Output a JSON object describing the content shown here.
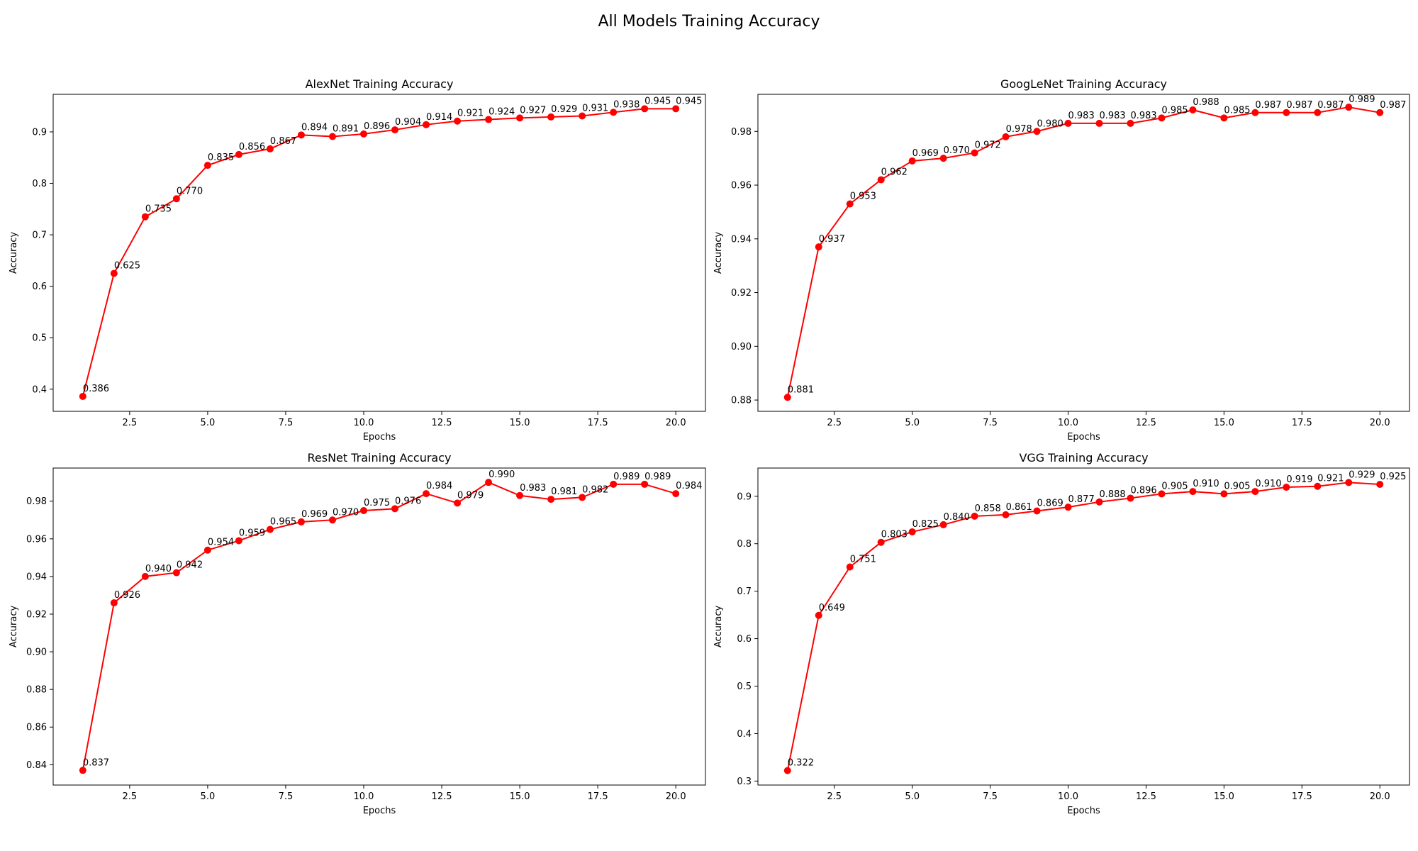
{
  "figure_title": "All Models Training Accuracy",
  "chart_data": [
    {
      "type": "line",
      "title": "AlexNet Training Accuracy",
      "xlabel": "Epochs",
      "ylabel": "Accuracy",
      "xlim": [
        0.05,
        20.95
      ],
      "ylim": [
        0.357,
        0.973
      ],
      "xticks": [
        2.5,
        5.0,
        7.5,
        10.0,
        12.5,
        15.0,
        17.5,
        20.0
      ],
      "xtick_labels": [
        "2.5",
        "5.0",
        "7.5",
        "10.0",
        "12.5",
        "15.0",
        "17.5",
        "20.0"
      ],
      "yticks": [
        0.4,
        0.5,
        0.6,
        0.7,
        0.8,
        0.9
      ],
      "ytick_labels": [
        "0.4",
        "0.5",
        "0.6",
        "0.7",
        "0.8",
        "0.9"
      ],
      "grid": false,
      "color": "#ff0000",
      "x": [
        1,
        2,
        3,
        4,
        5,
        6,
        7,
        8,
        9,
        10,
        11,
        12,
        13,
        14,
        15,
        16,
        17,
        18,
        19,
        20
      ],
      "values": [
        0.386,
        0.625,
        0.735,
        0.77,
        0.835,
        0.856,
        0.867,
        0.894,
        0.891,
        0.896,
        0.904,
        0.914,
        0.921,
        0.924,
        0.927,
        0.929,
        0.931,
        0.938,
        0.945,
        0.945
      ],
      "labels": [
        "0.386",
        "0.625",
        "0.735",
        "0.770",
        "0.835",
        "0.856",
        "0.867",
        "0.894",
        "0.891",
        "0.896",
        "0.904",
        "0.914",
        "0.921",
        "0.924",
        "0.927",
        "0.929",
        "0.931",
        "0.938",
        "0.945",
        "0.945"
      ]
    },
    {
      "type": "line",
      "title": "GoogLeNet Training Accuracy",
      "xlabel": "Epochs",
      "ylabel": "Accuracy",
      "xlim": [
        0.05,
        20.95
      ],
      "ylim": [
        0.8758,
        0.9938
      ],
      "xticks": [
        2.5,
        5.0,
        7.5,
        10.0,
        12.5,
        15.0,
        17.5,
        20.0
      ],
      "xtick_labels": [
        "2.5",
        "5.0",
        "7.5",
        "10.0",
        "12.5",
        "15.0",
        "17.5",
        "20.0"
      ],
      "yticks": [
        0.88,
        0.9,
        0.92,
        0.94,
        0.96,
        0.98
      ],
      "ytick_labels": [
        "0.88",
        "0.90",
        "0.92",
        "0.94",
        "0.96",
        "0.98"
      ],
      "grid": false,
      "color": "#ff0000",
      "x": [
        1,
        2,
        3,
        4,
        5,
        6,
        7,
        8,
        9,
        10,
        11,
        12,
        13,
        14,
        15,
        16,
        17,
        18,
        19,
        20
      ],
      "values": [
        0.881,
        0.937,
        0.953,
        0.962,
        0.969,
        0.97,
        0.972,
        0.978,
        0.98,
        0.983,
        0.983,
        0.983,
        0.985,
        0.988,
        0.985,
        0.987,
        0.987,
        0.987,
        0.989,
        0.987
      ],
      "labels": [
        "0.881",
        "0.937",
        "0.953",
        "0.962",
        "0.969",
        "0.970",
        "0.972",
        "0.978",
        "0.980",
        "0.983",
        "0.983",
        "0.983",
        "0.985",
        "0.988",
        "0.985",
        "0.987",
        "0.987",
        "0.987",
        "0.989",
        "0.987"
      ]
    },
    {
      "type": "line",
      "title": "ResNet Training Accuracy",
      "xlabel": "Epochs",
      "ylabel": "Accuracy",
      "xlim": [
        0.05,
        20.95
      ],
      "ylim": [
        0.8292,
        0.9976
      ],
      "xticks": [
        2.5,
        5.0,
        7.5,
        10.0,
        12.5,
        15.0,
        17.5,
        20.0
      ],
      "xtick_labels": [
        "2.5",
        "5.0",
        "7.5",
        "10.0",
        "12.5",
        "15.0",
        "17.5",
        "20.0"
      ],
      "yticks": [
        0.84,
        0.86,
        0.88,
        0.9,
        0.92,
        0.94,
        0.96,
        0.98
      ],
      "ytick_labels": [
        "0.84",
        "0.86",
        "0.88",
        "0.90",
        "0.92",
        "0.94",
        "0.96",
        "0.98"
      ],
      "grid": false,
      "color": "#ff0000",
      "x": [
        1,
        2,
        3,
        4,
        5,
        6,
        7,
        8,
        9,
        10,
        11,
        12,
        13,
        14,
        15,
        16,
        17,
        18,
        19,
        20
      ],
      "values": [
        0.837,
        0.926,
        0.94,
        0.942,
        0.954,
        0.959,
        0.965,
        0.969,
        0.97,
        0.975,
        0.976,
        0.984,
        0.979,
        0.99,
        0.983,
        0.981,
        0.982,
        0.989,
        0.989,
        0.984
      ],
      "labels": [
        "0.837",
        "0.926",
        "0.940",
        "0.942",
        "0.954",
        "0.959",
        "0.965",
        "0.969",
        "0.970",
        "0.975",
        "0.976",
        "0.984",
        "0.979",
        "0.990",
        "0.983",
        "0.981",
        "0.982",
        "0.989",
        "0.989",
        "0.984"
      ]
    },
    {
      "type": "line",
      "title": "VGG Training Accuracy",
      "xlabel": "Epochs",
      "ylabel": "Accuracy",
      "xlim": [
        0.05,
        20.95
      ],
      "ylim": [
        0.2916,
        0.9594
      ],
      "xticks": [
        2.5,
        5.0,
        7.5,
        10.0,
        12.5,
        15.0,
        17.5,
        20.0
      ],
      "xtick_labels": [
        "2.5",
        "5.0",
        "7.5",
        "10.0",
        "12.5",
        "15.0",
        "17.5",
        "20.0"
      ],
      "yticks": [
        0.3,
        0.4,
        0.5,
        0.6,
        0.7,
        0.8,
        0.9
      ],
      "ytick_labels": [
        "0.3",
        "0.4",
        "0.5",
        "0.6",
        "0.7",
        "0.8",
        "0.9"
      ],
      "grid": false,
      "color": "#ff0000",
      "x": [
        1,
        2,
        3,
        4,
        5,
        6,
        7,
        8,
        9,
        10,
        11,
        12,
        13,
        14,
        15,
        16,
        17,
        18,
        19,
        20
      ],
      "values": [
        0.322,
        0.649,
        0.751,
        0.803,
        0.825,
        0.84,
        0.858,
        0.861,
        0.869,
        0.877,
        0.888,
        0.896,
        0.905,
        0.91,
        0.905,
        0.91,
        0.919,
        0.921,
        0.929,
        0.925
      ],
      "labels": [
        "0.322",
        "0.649",
        "0.751",
        "0.803",
        "0.825",
        "0.840",
        "0.858",
        "0.861",
        "0.869",
        "0.877",
        "0.888",
        "0.896",
        "0.905",
        "0.910",
        "0.905",
        "0.910",
        "0.919",
        "0.921",
        "0.929",
        "0.925"
      ]
    }
  ]
}
